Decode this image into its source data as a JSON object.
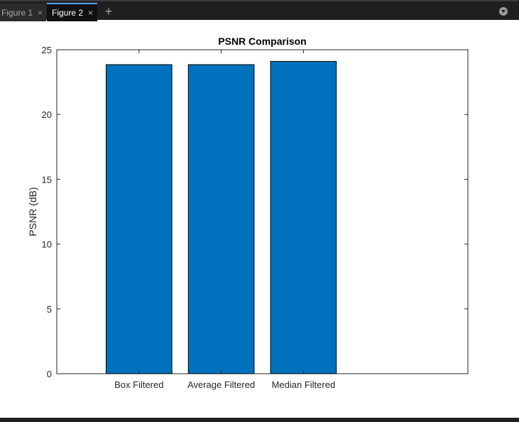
{
  "tabs": [
    {
      "label": "Figure 1",
      "close": "×",
      "active": false
    },
    {
      "label": "Figure 2",
      "close": "×",
      "active": true
    }
  ],
  "add_tab_icon": "plus-icon",
  "menu_icon": "chevron-down-circle-icon",
  "colors": {
    "bar": "#0072bd",
    "titlebar": "#1f1f1f",
    "active_tab_accent": "#4fa3ff"
  },
  "chart_data": {
    "type": "bar",
    "title": "PSNR Comparison",
    "xlabel": "",
    "ylabel": "PSNR (dB)",
    "categories": [
      "Box Filtered",
      "Average Filtered",
      "Median Filtered"
    ],
    "values": [
      23.85,
      23.85,
      24.1
    ],
    "ylim": [
      0,
      25
    ],
    "yticks": [
      0,
      5,
      10,
      15,
      20,
      25
    ],
    "grid": false,
    "legend": "none"
  }
}
